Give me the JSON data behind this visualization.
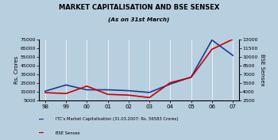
{
  "title": "MARKET CAPITALISATION AND BSE SENSEX",
  "subtitle": "(As on 31st March)",
  "years": [
    "98",
    "99",
    "00",
    "01",
    "02",
    "03",
    "04",
    "05",
    "06",
    "07"
  ],
  "market_cap": [
    16000,
    23000,
    17500,
    17500,
    16500,
    14500,
    24000,
    32000,
    74000,
    56583
  ],
  "bse_sensex": [
    3893,
    3740,
    5001,
    3604,
    3469,
    3049,
    5591,
    6493,
    11280,
    13000
  ],
  "left_ylim": [
    5000,
    75000
  ],
  "left_yticks": [
    5000,
    15000,
    25000,
    35000,
    45000,
    55000,
    65000,
    75000
  ],
  "right_ylim": [
    2500,
    13000
  ],
  "right_yticks": [
    2500,
    4000,
    5500,
    7000,
    8500,
    10000,
    11500,
    13000
  ],
  "ylabel_left": "Rs. Crores",
  "ylabel_right": "BSE Sensex",
  "line1_color": "#1c3c8c",
  "line2_color": "#cc0000",
  "legend1": "ITC's Market Capitalisation (31.03.2007: Rs. 56583 Crores)",
  "legend2": "BSE Sensex",
  "bg_color": "#b8cfe0",
  "plot_bg_color": "#b8cfe0"
}
